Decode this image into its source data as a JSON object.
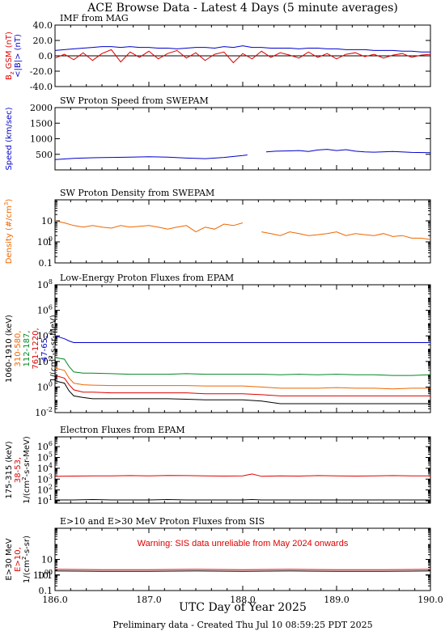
{
  "title": "ACE Browse Data - Latest 4 Days (5 minute averages)",
  "xlabel": "UTC Day of Year 2025",
  "footer": "Preliminary data - Created Thu Jul 10 08:59:25 PDT 2025",
  "x_ticks": [
    "186.0",
    "187.0",
    "188.0",
    "189.0",
    "190.0"
  ],
  "colors": {
    "blue": "#0000cc",
    "red": "#e00000",
    "orange": "#ee6600",
    "green": "#008822",
    "black": "#000000"
  },
  "chart_data": [
    {
      "type": "line",
      "title": "IMF from MAG",
      "x": [
        186.0,
        186.1,
        186.2,
        186.3,
        186.4,
        186.5,
        186.6,
        186.7,
        186.8,
        186.9,
        187.0,
        187.1,
        187.2,
        187.3,
        187.4,
        187.5,
        187.6,
        187.7,
        187.8,
        187.9,
        188.0,
        188.1,
        188.2,
        188.3,
        188.4,
        188.5,
        188.6,
        188.7,
        188.8,
        188.9,
        189.0,
        189.1,
        189.2,
        189.3,
        189.4,
        189.5,
        189.6,
        189.7,
        189.8,
        189.9,
        190.0
      ],
      "series": [
        {
          "name": "<|B|> (nT)",
          "color": "blue",
          "values": [
            7,
            8,
            9,
            10,
            11,
            12,
            12,
            11,
            12,
            11,
            11,
            10,
            10,
            9,
            10,
            11,
            11,
            10,
            12,
            11,
            13,
            11,
            11,
            10,
            10,
            10,
            9,
            10,
            10,
            9,
            9,
            8,
            8,
            8,
            7,
            7,
            7,
            6,
            6,
            5,
            5
          ]
        },
        {
          "name": "Bz GSM (nT)",
          "color": "red",
          "values": [
            -3,
            2,
            -5,
            4,
            -6,
            3,
            8,
            -8,
            5,
            -2,
            6,
            -4,
            3,
            7,
            -3,
            4,
            -6,
            2,
            5,
            -9,
            3,
            -4,
            6,
            -2,
            4,
            1,
            -3,
            5,
            -2,
            3,
            -4,
            2,
            4,
            -1,
            2,
            -3,
            1,
            3,
            -2,
            1,
            2
          ]
        }
      ],
      "y_ticks": [
        "-40.0",
        "-20.0",
        "0.0",
        "20.0",
        "40.0"
      ],
      "ylim": [
        -40,
        40
      ],
      "ylabel_lines": [
        {
          "text": "B",
          "color": "red",
          "sub": "z",
          "suffix": " GSM (nT)"
        },
        {
          "text": "<|B|> (nT)",
          "color": "blue"
        }
      ]
    },
    {
      "type": "line",
      "title": "SW Proton Speed from SWEPAM",
      "x": [
        186.0,
        186.2,
        186.4,
        186.6,
        186.8,
        187.0,
        187.2,
        187.4,
        187.6,
        187.8,
        188.0,
        188.05,
        188.1,
        188.25,
        188.35,
        188.5,
        188.6,
        188.7,
        188.8,
        188.9,
        189.0,
        189.1,
        189.2,
        189.3,
        189.4,
        189.6,
        189.8,
        190.0
      ],
      "series": [
        {
          "name": "Speed",
          "color": "blue",
          "values": [
            330,
            370,
            390,
            400,
            410,
            420,
            410,
            380,
            360,
            400,
            460,
            480,
            null,
            580,
            600,
            610,
            620,
            590,
            640,
            660,
            620,
            650,
            600,
            580,
            570,
            590,
            560,
            550
          ]
        }
      ],
      "y_ticks": [
        "500",
        "1000",
        "1500",
        "2000"
      ],
      "ylim": [
        0,
        2000
      ],
      "ylabel_lines": [
        {
          "text": "Speed (km/sec)",
          "color": "blue"
        }
      ]
    },
    {
      "type": "line",
      "title": "SW Proton Density from SWEPAM",
      "log": true,
      "x": [
        186.0,
        186.1,
        186.2,
        186.3,
        186.4,
        186.5,
        186.6,
        186.7,
        186.8,
        186.9,
        187.0,
        187.1,
        187.2,
        187.3,
        187.4,
        187.5,
        187.6,
        187.7,
        187.8,
        187.9,
        188.0,
        188.1,
        188.2,
        188.3,
        188.4,
        188.5,
        188.6,
        188.7,
        188.8,
        188.9,
        189.0,
        189.1,
        189.2,
        189.3,
        189.4,
        189.5,
        189.6,
        189.7,
        189.8,
        189.9,
        190.0
      ],
      "series": [
        {
          "name": "Density",
          "color": "orange",
          "values": [
            10,
            8,
            6,
            5,
            6,
            5,
            4.5,
            6,
            5,
            5.5,
            6,
            5,
            4,
            5,
            6,
            3,
            5,
            4,
            7,
            6,
            8,
            null,
            3,
            2.5,
            2,
            3,
            2.5,
            2,
            2.2,
            2.5,
            3,
            2,
            2.5,
            2.2,
            2,
            2.5,
            1.8,
            2,
            1.5,
            1.5,
            1.3
          ]
        }
      ],
      "y_ticks": [
        "0.1",
        "1",
        "10",
        "100"
      ],
      "ylim": [
        0.1,
        100
      ],
      "ylabel_lines": [
        {
          "text": "Density (#/cm",
          "sup": "3",
          "suffix": ")",
          "color": "orange"
        }
      ]
    },
    {
      "type": "line",
      "title": "Low-Energy Proton Fluxes from EPAM",
      "log": true,
      "x": [
        186.0,
        186.1,
        186.15,
        186.2,
        186.3,
        186.4,
        186.6,
        186.8,
        187.0,
        187.2,
        187.4,
        187.6,
        187.8,
        188.0,
        188.2,
        188.4,
        188.6,
        188.8,
        189.0,
        189.2,
        189.4,
        189.6,
        189.8,
        190.0
      ],
      "series": [
        {
          "name": "47-65",
          "color": "blue",
          "values": [
            10000,
            6000,
            4000,
            3000,
            3000,
            3000,
            3000,
            3000,
            3000,
            3000,
            3000,
            3000,
            3000,
            3000,
            3000,
            3000,
            3000,
            3000,
            3000,
            3000,
            3000,
            3000,
            3000,
            3000
          ]
        },
        {
          "name": "112-187",
          "color": "green",
          "values": [
            200,
            150,
            40,
            15,
            12,
            12,
            11,
            10,
            10,
            10,
            11,
            10,
            10,
            10,
            10,
            9,
            10,
            9,
            10,
            9,
            9,
            8,
            8,
            9
          ]
        },
        {
          "name": "310-580",
          "color": "orange",
          "values": [
            30,
            20,
            5,
            2,
            1.5,
            1.4,
            1.3,
            1.3,
            1.3,
            1.3,
            1.3,
            1.2,
            1.2,
            1.2,
            1.0,
            0.8,
            0.8,
            0.8,
            0.9,
            0.8,
            0.8,
            0.7,
            0.8,
            0.8
          ]
        },
        {
          "name": "761-1220",
          "color": "red",
          "values": [
            8,
            5,
            1.5,
            0.6,
            0.4,
            0.4,
            0.35,
            0.35,
            0.35,
            0.35,
            0.35,
            0.3,
            0.3,
            0.3,
            0.25,
            0.2,
            0.2,
            0.2,
            0.2,
            0.2,
            0.2,
            0.2,
            0.2,
            0.2
          ]
        },
        {
          "name": "1060-1910",
          "color": "black",
          "values": [
            3,
            2,
            0.5,
            0.2,
            0.15,
            0.12,
            0.12,
            0.12,
            0.12,
            0.12,
            0.11,
            0.1,
            0.1,
            0.1,
            0.08,
            0.05,
            0.05,
            0.05,
            0.05,
            0.05,
            0.05,
            0.05,
            0.05,
            0.05
          ]
        }
      ],
      "y_ticks": [
        "10-2",
        "100",
        "102",
        "104",
        "106",
        "108"
      ],
      "ylim": [
        0.01,
        100000000
      ],
      "ylabel_lines": [
        {
          "text": "1060-1910 (keV)",
          "color": "black"
        },
        {
          "text": "310-580,",
          "color": "orange"
        },
        {
          "text": "112-187,",
          "color": "green"
        },
        {
          "text": "761-1220,",
          "color": "red"
        },
        {
          "text": "47-65,",
          "color": "blue"
        },
        {
          "text": "1/(cm",
          "sup": "2",
          "suffix": "-s-sr-MeV)",
          "color": "black"
        }
      ]
    },
    {
      "type": "line",
      "title": "Electron Fluxes from EPAM",
      "log": true,
      "x": [
        186.0,
        186.2,
        186.4,
        186.6,
        186.8,
        187.0,
        187.2,
        187.4,
        187.6,
        187.8,
        188.0,
        188.1,
        188.2,
        188.4,
        188.6,
        188.8,
        189.0,
        189.2,
        189.4,
        189.6,
        189.8,
        190.0
      ],
      "series": [
        {
          "name": "38-53",
          "color": "red",
          "values": [
            1800,
            1900,
            2000,
            2000,
            2100,
            2000,
            2200,
            2100,
            2000,
            1900,
            2000,
            3000,
            1800,
            2000,
            1900,
            2100,
            2000,
            1900,
            2000,
            2100,
            2000,
            2000
          ]
        },
        {
          "name": "175-315",
          "color": "black",
          "values": [
            12,
            12,
            13,
            12,
            12,
            12,
            13,
            12,
            12,
            12,
            12,
            13,
            12,
            12,
            12,
            12,
            12,
            12,
            12,
            12,
            12,
            12
          ]
        }
      ],
      "y_ticks": [
        "101",
        "102",
        "103",
        "104",
        "105",
        "106"
      ],
      "ylim": [
        6,
        8000000
      ],
      "ylabel_lines": [
        {
          "text": "175-315 (keV)",
          "color": "black"
        },
        {
          "text": "38-53,",
          "color": "red"
        },
        {
          "text": "1/(cm",
          "sup": "2",
          "suffix": "-s-sr-MeV)",
          "color": "black"
        }
      ]
    },
    {
      "type": "line",
      "title": "E>10 and E>30 MeV Proton Fluxes from SIS",
      "log": true,
      "annotation": "Warning: SIS data unreliable from May 2024 onwards",
      "x": [
        186.0,
        186.5,
        187.0,
        187.5,
        188.0,
        188.5,
        189.0,
        189.5,
        190.0
      ],
      "series": [
        {
          "name": "E>10",
          "color": "red",
          "values": [
            2.3,
            2.2,
            2.2,
            2.3,
            2.2,
            2.3,
            2.2,
            2.2,
            2.3
          ]
        },
        {
          "name": "E>30",
          "color": "black",
          "values": [
            1.8,
            1.7,
            1.7,
            1.8,
            1.7,
            1.8,
            1.7,
            1.7,
            1.8
          ]
        }
      ],
      "y_ticks": [
        "0.1",
        "1",
        "10",
        "100",
        "1000"
      ],
      "ylim": [
        0.1,
        1000
      ],
      "ylabel_lines": [
        {
          "text": "E>30 MeV",
          "color": "black"
        },
        {
          "text": "E>10,",
          "color": "red"
        },
        {
          "text": "1/(cm",
          "sup": "2",
          "suffix": "-s-sr)",
          "color": "black"
        }
      ]
    }
  ]
}
